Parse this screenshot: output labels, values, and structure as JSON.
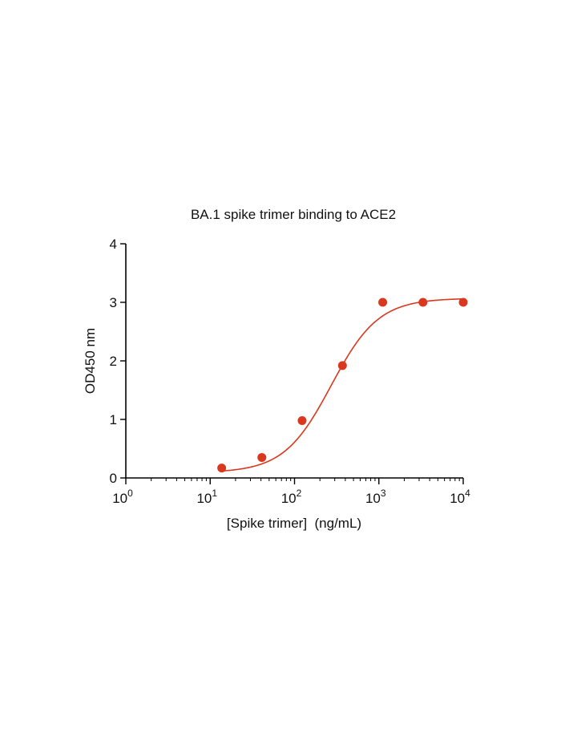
{
  "chart_data": {
    "type": "scatter",
    "title": "BA.1 spike trimer binding to ACE2",
    "xlabel": "[Spike trimer]  (ng/mL)",
    "ylabel": "OD450 nm",
    "xscale": "log",
    "xlim": [
      1,
      10000
    ],
    "ylim": [
      0,
      4
    ],
    "x_ticks": [
      {
        "base": "10",
        "exp": "0",
        "value": 1
      },
      {
        "base": "10",
        "exp": "1",
        "value": 10
      },
      {
        "base": "10",
        "exp": "2",
        "value": 100
      },
      {
        "base": "10",
        "exp": "3",
        "value": 1000
      },
      {
        "base": "10",
        "exp": "4",
        "value": 10000
      }
    ],
    "y_ticks": [
      "0",
      "1",
      "2",
      "3",
      "4"
    ],
    "grid": false,
    "colors": {
      "series": "#d9381e",
      "axis": "#000000"
    },
    "series": [
      {
        "points": [
          {
            "x": 13.7,
            "y": 0.17
          },
          {
            "x": 41,
            "y": 0.35
          },
          {
            "x": 123,
            "y": 0.98
          },
          {
            "x": 370,
            "y": 1.92
          },
          {
            "x": 1111,
            "y": 3.0
          },
          {
            "x": 3333,
            "y": 3.0
          },
          {
            "x": 10000,
            "y": 3.0
          }
        ],
        "fit_curve": {
          "bottom": 0.09,
          "top": 3.07,
          "ec50": 272,
          "hill": 1.55
        }
      }
    ]
  }
}
